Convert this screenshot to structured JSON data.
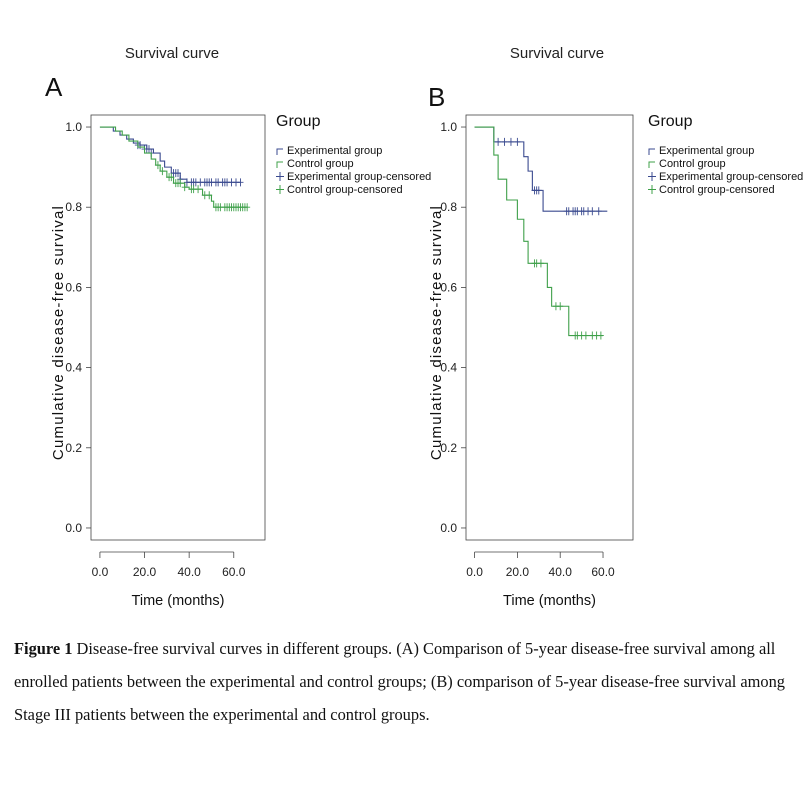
{
  "colors": {
    "experimental": "#3a4a8f",
    "control": "#3fa04a",
    "axis": "#444444"
  },
  "chart_data": [
    {
      "panel": "A",
      "title": "Survival curve",
      "type": "line",
      "step": true,
      "xlabel": "Time (months)",
      "ylabel": "Cumulative disease-free survival",
      "xlim": [
        -4,
        74
      ],
      "ylim": [
        -0.03,
        1.03
      ],
      "x_ticks": [
        0,
        20,
        40,
        60
      ],
      "x_tick_labels": [
        "0.0",
        "20.0",
        "40.0",
        "60.0"
      ],
      "y_ticks": [
        0,
        0.2,
        0.4,
        0.6,
        0.8,
        1.0
      ],
      "y_tick_labels": [
        "0.0",
        "0.2",
        "0.4",
        "0.6",
        "0.8",
        "1.0"
      ],
      "legend_title": "Group",
      "legend_labels": [
        "Experimental group",
        "Control group",
        "Experimental group-censored",
        "Control group-censored"
      ],
      "series": [
        {
          "name": "Experimental group",
          "color_key": "experimental",
          "steps": [
            [
              0,
              1.0
            ],
            [
              6,
              0.99
            ],
            [
              9,
              0.98
            ],
            [
              12,
              0.97
            ],
            [
              15,
              0.96
            ],
            [
              18,
              0.955
            ],
            [
              21,
              0.945
            ],
            [
              24,
              0.935
            ],
            [
              27,
              0.915
            ],
            [
              29,
              0.9
            ],
            [
              32,
              0.885
            ],
            [
              36,
              0.87
            ],
            [
              39,
              0.862
            ],
            [
              63,
              0.862
            ]
          ],
          "censored": [
            [
              17,
              0.955
            ],
            [
              18,
              0.955
            ],
            [
              20,
              0.945
            ],
            [
              21,
              0.945
            ],
            [
              22,
              0.945
            ],
            [
              23,
              0.935
            ],
            [
              33,
              0.885
            ],
            [
              34,
              0.885
            ],
            [
              35,
              0.885
            ],
            [
              36,
              0.87
            ],
            [
              39,
              0.862
            ],
            [
              41,
              0.862
            ],
            [
              42,
              0.862
            ],
            [
              43,
              0.862
            ],
            [
              45,
              0.862
            ],
            [
              47,
              0.862
            ],
            [
              48,
              0.862
            ],
            [
              49,
              0.862
            ],
            [
              50,
              0.862
            ],
            [
              52,
              0.862
            ],
            [
              53,
              0.862
            ],
            [
              55,
              0.862
            ],
            [
              56,
              0.862
            ],
            [
              57,
              0.862
            ],
            [
              59,
              0.862
            ],
            [
              61,
              0.862
            ],
            [
              63,
              0.862
            ]
          ]
        },
        {
          "name": "Control group",
          "color_key": "control",
          "steps": [
            [
              0,
              1.0
            ],
            [
              7,
              0.99
            ],
            [
              10,
              0.98
            ],
            [
              13,
              0.965
            ],
            [
              17,
              0.95
            ],
            [
              20,
              0.935
            ],
            [
              23,
              0.92
            ],
            [
              25,
              0.905
            ],
            [
              27,
              0.89
            ],
            [
              30,
              0.875
            ],
            [
              33,
              0.86
            ],
            [
              38,
              0.85
            ],
            [
              40,
              0.845
            ],
            [
              46,
              0.83
            ],
            [
              50,
              0.815
            ],
            [
              51,
              0.8
            ],
            [
              66,
              0.8
            ]
          ],
          "censored": [
            [
              26,
              0.905
            ],
            [
              28,
              0.89
            ],
            [
              31,
              0.875
            ],
            [
              32,
              0.875
            ],
            [
              34,
              0.86
            ],
            [
              35,
              0.86
            ],
            [
              36,
              0.86
            ],
            [
              38,
              0.85
            ],
            [
              41,
              0.845
            ],
            [
              42,
              0.845
            ],
            [
              44,
              0.845
            ],
            [
              47,
              0.83
            ],
            [
              49,
              0.83
            ],
            [
              52,
              0.8
            ],
            [
              53,
              0.8
            ],
            [
              54,
              0.8
            ],
            [
              56,
              0.8
            ],
            [
              57,
              0.8
            ],
            [
              58,
              0.8
            ],
            [
              59,
              0.8
            ],
            [
              60,
              0.8
            ],
            [
              61,
              0.8
            ],
            [
              62,
              0.8
            ],
            [
              63,
              0.8
            ],
            [
              64,
              0.8
            ],
            [
              65,
              0.8
            ],
            [
              66,
              0.8
            ]
          ]
        }
      ]
    },
    {
      "panel": "B",
      "title": "Survival curve",
      "type": "line",
      "step": true,
      "xlabel": "Time (months)",
      "ylabel": "Cumulative disease-free survival",
      "xlim": [
        -4,
        74
      ],
      "ylim": [
        -0.03,
        1.03
      ],
      "x_ticks": [
        0,
        20,
        40,
        60
      ],
      "x_tick_labels": [
        "0.0",
        "20.0",
        "40.0",
        "60.0"
      ],
      "y_ticks": [
        0,
        0.2,
        0.4,
        0.6,
        0.8,
        1.0
      ],
      "y_tick_labels": [
        "0.0",
        "0.2",
        "0.4",
        "0.6",
        "0.8",
        "1.0"
      ],
      "legend_title": "Group",
      "legend_labels": [
        "Experimental group",
        "Control group",
        "Experimental group-censored",
        "Control group-censored"
      ],
      "series": [
        {
          "name": "Experimental group",
          "color_key": "experimental",
          "steps": [
            [
              0,
              1.0
            ],
            [
              9,
              0.963
            ],
            [
              23,
              0.926
            ],
            [
              25,
              0.89
            ],
            [
              27,
              0.842
            ],
            [
              32,
              0.79
            ],
            [
              62,
              0.79
            ]
          ],
          "censored": [
            [
              11,
              0.963
            ],
            [
              14,
              0.963
            ],
            [
              17,
              0.963
            ],
            [
              20,
              0.963
            ],
            [
              28,
              0.842
            ],
            [
              29,
              0.842
            ],
            [
              30,
              0.842
            ],
            [
              43,
              0.79
            ],
            [
              44,
              0.79
            ],
            [
              46,
              0.79
            ],
            [
              47,
              0.79
            ],
            [
              48,
              0.79
            ],
            [
              50,
              0.79
            ],
            [
              51,
              0.79
            ],
            [
              53,
              0.79
            ],
            [
              55,
              0.79
            ],
            [
              58,
              0.79
            ]
          ]
        },
        {
          "name": "Control group",
          "color_key": "control",
          "steps": [
            [
              0,
              1.0
            ],
            [
              9,
              0.93
            ],
            [
              11,
              0.87
            ],
            [
              15,
              0.818
            ],
            [
              20,
              0.77
            ],
            [
              23,
              0.715
            ],
            [
              25,
              0.66
            ],
            [
              34,
              0.6
            ],
            [
              36,
              0.553
            ],
            [
              43,
              0.553
            ],
            [
              44,
              0.48
            ],
            [
              60,
              0.48
            ]
          ],
          "censored": [
            [
              28,
              0.66
            ],
            [
              29,
              0.66
            ],
            [
              31,
              0.66
            ],
            [
              38,
              0.553
            ],
            [
              40,
              0.553
            ],
            [
              47,
              0.48
            ],
            [
              48,
              0.48
            ],
            [
              50,
              0.48
            ],
            [
              52,
              0.48
            ],
            [
              55,
              0.48
            ],
            [
              57,
              0.48
            ],
            [
              59,
              0.48
            ]
          ]
        }
      ]
    }
  ],
  "caption": {
    "label": "Figure 1",
    "text": " Disease-free survival curves in different groups. (A) Comparison of 5-year disease-free survival among all enrolled patients between the experimental and control groups; (B) comparison of 5-year disease-free survival among Stage III patients between the experimental and control groups."
  }
}
